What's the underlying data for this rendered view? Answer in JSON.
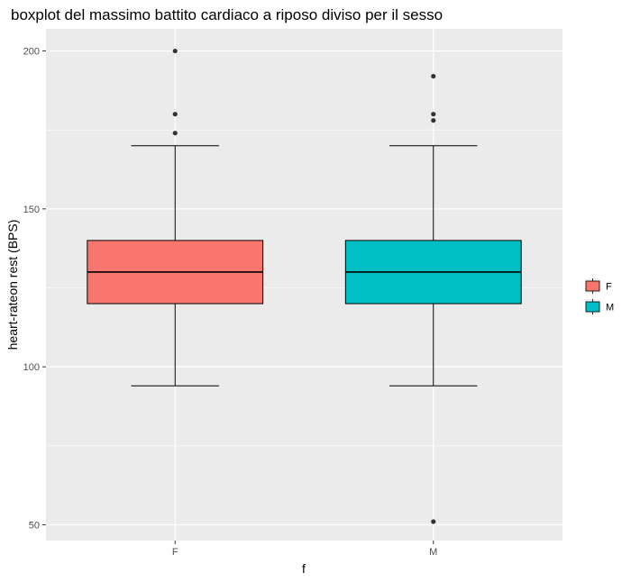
{
  "chart_data": {
    "type": "boxplot",
    "title": "boxplot del massimo battito cardiaco a riposo diviso per il sesso",
    "xlabel": "f",
    "ylabel": "heart-rateon rest (BPS)",
    "ylim": [
      45,
      207
    ],
    "yticks": [
      50,
      100,
      150,
      200
    ],
    "grid": true,
    "legend_position": "right",
    "categories": [
      "F",
      "M"
    ],
    "legend": [
      "F",
      "M"
    ],
    "colors": {
      "F": "#F8766D",
      "M": "#00BFC4",
      "panel": "#EBEBEB",
      "grid": "#FFFFFF"
    },
    "boxes": [
      {
        "name": "F",
        "min": 94,
        "q1": 120,
        "median": 130,
        "q3": 140,
        "max": 170,
        "outliers": [
          174,
          180,
          200
        ]
      },
      {
        "name": "M",
        "min": 94,
        "q1": 120,
        "median": 130,
        "q3": 140,
        "max": 170,
        "outliers": [
          51,
          178,
          180,
          192
        ]
      }
    ]
  }
}
